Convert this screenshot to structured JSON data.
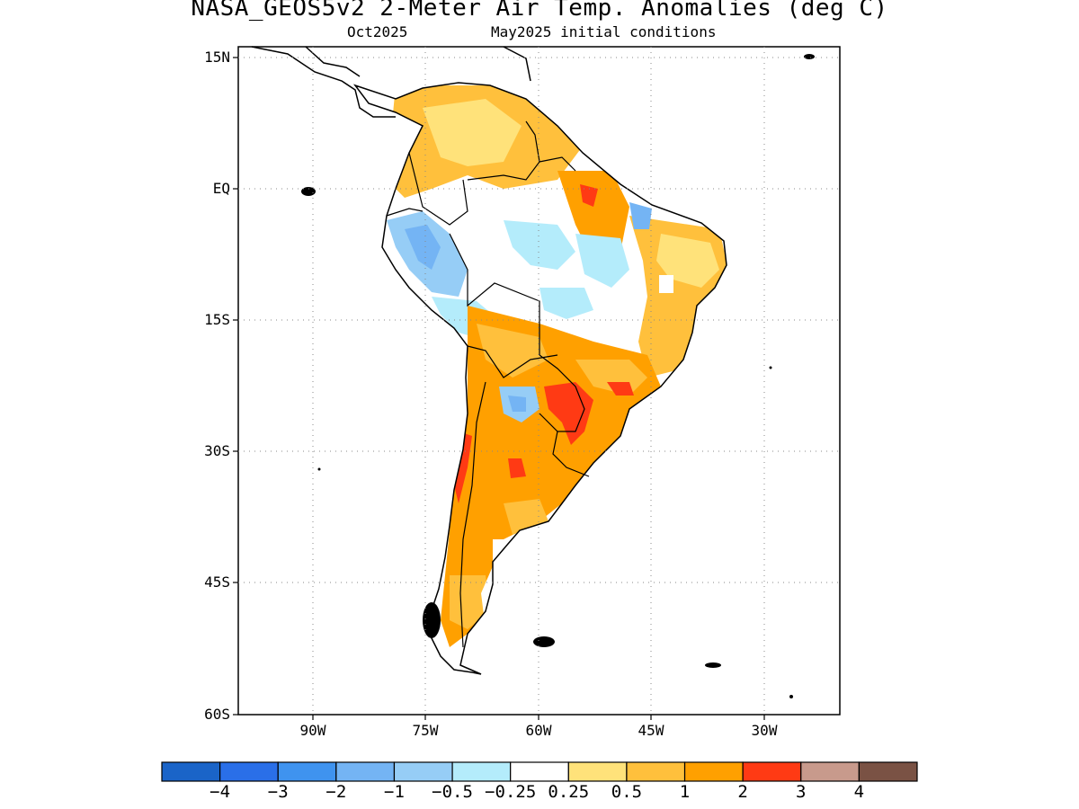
{
  "header": {
    "title": "NASA_GEOS5v2 2-Meter Air Temp. Anomalies (deg C)",
    "sub_left": "Oct2025",
    "sub_right": "May2025 initial conditions"
  },
  "axes": {
    "y_ticks": [
      "15N",
      "EQ",
      "15S",
      "30S",
      "45S",
      "60S"
    ],
    "x_ticks": [
      "90W",
      "75W",
      "60W",
      "45W",
      "30W"
    ],
    "lat_range": [
      -60,
      15
    ],
    "lon_range": [
      -100,
      -20
    ],
    "grid": "dotted"
  },
  "colorbar": {
    "labels": [
      "-4",
      "-3",
      "-2",
      "-1",
      "-0.5",
      "-0.25",
      "0.25",
      "0.5",
      "1",
      "2",
      "3",
      "4"
    ],
    "colors": [
      "#1a64c8",
      "#2a6fe8",
      "#3f93ef",
      "#74b4f4",
      "#96cdf6",
      "#b4ecfb",
      "#ffffff",
      "#ffe27a",
      "#ffc03c",
      "#ffa000",
      "#ff3a14",
      "#c89a8c",
      "#7a5244"
    ]
  },
  "map_colors": {
    "land_neutral": "#ffffff",
    "warm_light": "#ffe27a",
    "warm_mid": "#ffc03c",
    "warm_strong": "#ffa000",
    "hot": "#ff3a14",
    "cool_light": "#b4ecfb",
    "cool_mid": "#96cdf6",
    "cool_strong": "#74b4f4",
    "coast": "#000000"
  }
}
